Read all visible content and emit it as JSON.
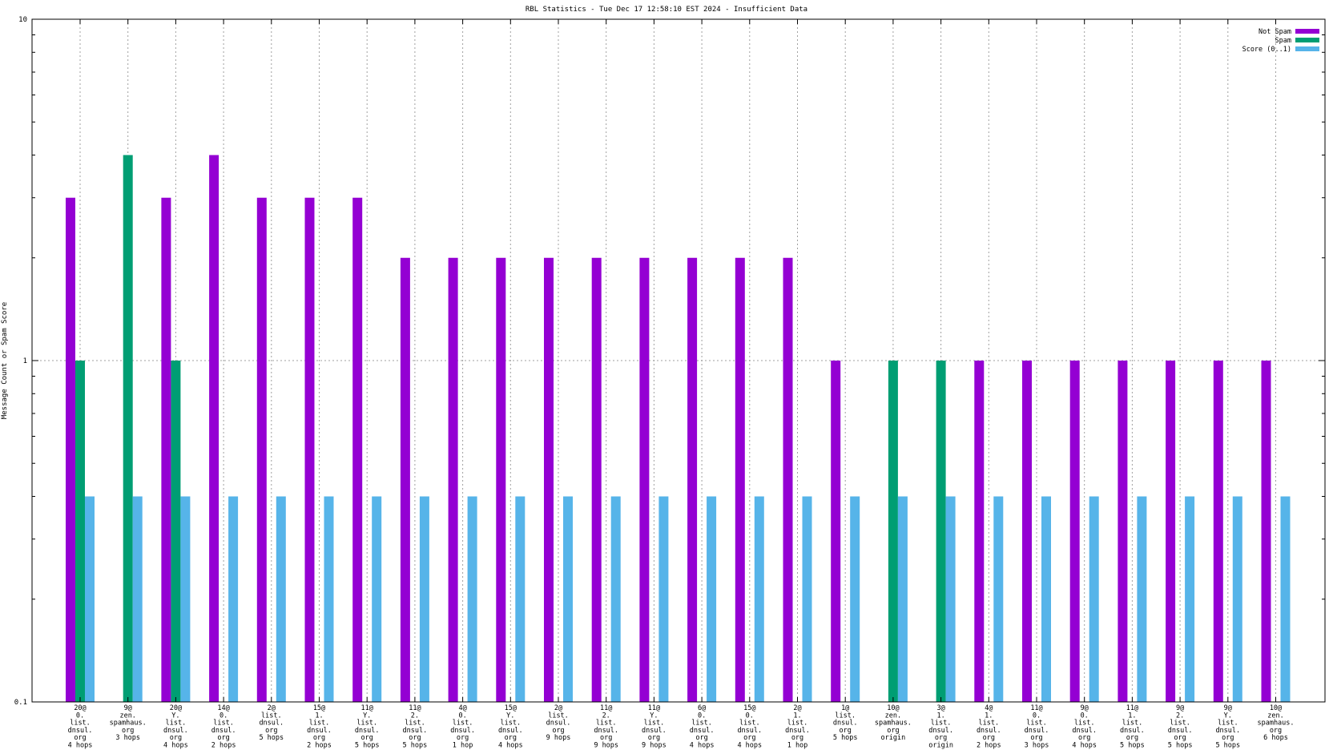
{
  "chart_data": {
    "type": "bar",
    "title": "RBL Statistics - Tue Dec 17 12:58:10 EST 2024 - Insufficient Data",
    "ylabel": "Message Count or Spam Score",
    "xlabel": "",
    "yscale": "log",
    "ylim": [
      0.1,
      10
    ],
    "ytick_labels": [
      "0.1",
      "1",
      "10"
    ],
    "grid": true,
    "legend_position": "top-right",
    "categories": [
      [
        "20@",
        "0.",
        "list.",
        "dnsul.",
        "org",
        "4 hops"
      ],
      [
        "9@",
        "zen.",
        "spamhaus.",
        "org",
        "3 hops"
      ],
      [
        "20@",
        "Y.",
        "list.",
        "dnsul.",
        "org",
        "4 hops"
      ],
      [
        "14@",
        "0.",
        "list.",
        "dnsul.",
        "org",
        "2 hops"
      ],
      [
        "2@",
        "list.",
        "dnsul.",
        "org",
        "5 hops"
      ],
      [
        "15@",
        "1.",
        "list.",
        "dnsul.",
        "org",
        "2 hops"
      ],
      [
        "11@",
        "Y.",
        "list.",
        "dnsul.",
        "org",
        "5 hops"
      ],
      [
        "11@",
        "2.",
        "list.",
        "dnsul.",
        "org",
        "5 hops"
      ],
      [
        "4@",
        "0.",
        "list.",
        "dnsul.",
        "org",
        "1 hop"
      ],
      [
        "15@",
        "Y.",
        "list.",
        "dnsul.",
        "org",
        "4 hops"
      ],
      [
        "2@",
        "list.",
        "dnsul.",
        "org",
        "9 hops"
      ],
      [
        "11@",
        "2.",
        "list.",
        "dnsul.",
        "org",
        "9 hops"
      ],
      [
        "11@",
        "Y.",
        "list.",
        "dnsul.",
        "org",
        "9 hops"
      ],
      [
        "6@",
        "0.",
        "list.",
        "dnsul.",
        "org",
        "4 hops"
      ],
      [
        "15@",
        "0.",
        "list.",
        "dnsul.",
        "org",
        "4 hops"
      ],
      [
        "2@",
        "1.",
        "list.",
        "dnsul.",
        "org",
        "1 hop"
      ],
      [
        "1@",
        "list.",
        "dnsul.",
        "org",
        "5 hops"
      ],
      [
        "10@",
        "zen.",
        "spamhaus.",
        "org",
        "origin"
      ],
      [
        "3@",
        "1.",
        "list.",
        "dnsul.",
        "org",
        "origin"
      ],
      [
        "4@",
        "1.",
        "list.",
        "dnsul.",
        "org",
        "2 hops"
      ],
      [
        "11@",
        "0.",
        "list.",
        "dnsul.",
        "org",
        "3 hops"
      ],
      [
        "9@",
        "0.",
        "list.",
        "dnsul.",
        "org",
        "4 hops"
      ],
      [
        "11@",
        "1.",
        "list.",
        "dnsul.",
        "org",
        "5 hops"
      ],
      [
        "9@",
        "2.",
        "list.",
        "dnsul.",
        "org",
        "5 hops"
      ],
      [
        "9@",
        "Y.",
        "list.",
        "dnsul.",
        "org",
        "5 hops"
      ],
      [
        "10@",
        "zen.",
        "spamhaus.",
        "org",
        "6 hops"
      ]
    ],
    "series": [
      {
        "name": "Not Spam",
        "color": "#9400d3",
        "values": [
          3,
          null,
          3,
          4,
          3,
          3,
          3,
          2,
          2,
          2,
          2,
          2,
          2,
          2,
          2,
          2,
          1,
          null,
          null,
          1,
          1,
          1,
          1,
          1,
          1,
          1
        ]
      },
      {
        "name": "Spam",
        "color": "#009e73",
        "values": [
          1,
          4,
          1,
          null,
          null,
          null,
          null,
          null,
          null,
          null,
          null,
          null,
          null,
          null,
          null,
          null,
          null,
          1,
          1,
          null,
          null,
          null,
          null,
          null,
          null,
          null
        ]
      },
      {
        "name": "Score (0..1)",
        "color": "#56b4e9",
        "values": [
          0.4,
          0.4,
          0.4,
          0.4,
          0.4,
          0.4,
          0.4,
          0.4,
          0.4,
          0.4,
          0.4,
          0.4,
          0.4,
          0.4,
          0.4,
          0.4,
          0.4,
          0.4,
          0.4,
          0.4,
          0.4,
          0.4,
          0.4,
          0.4,
          0.4,
          0.4
        ]
      }
    ]
  }
}
